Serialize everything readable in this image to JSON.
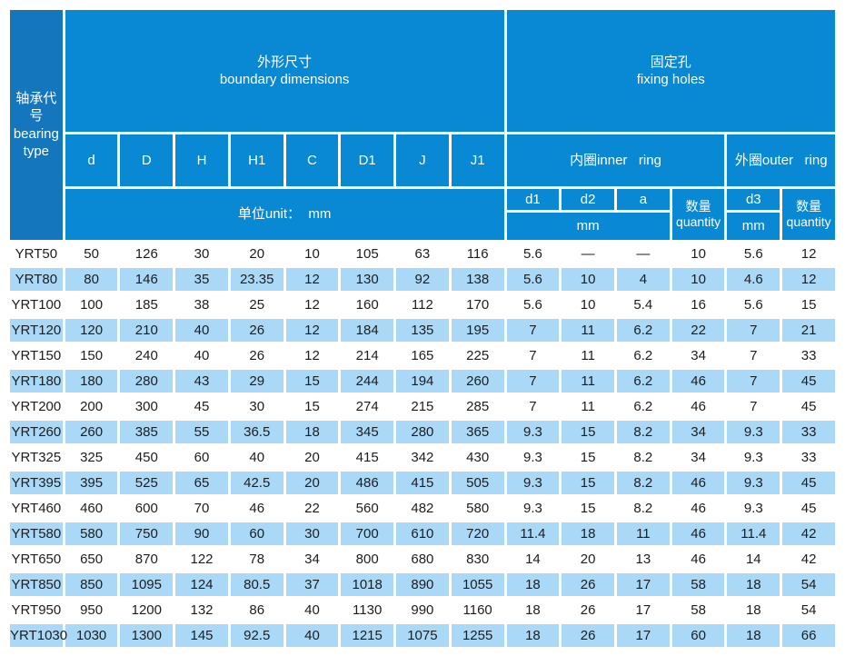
{
  "table": {
    "bearing_type_header": {
      "zh": "轴承代号",
      "en_line1": "bearing",
      "en_line2": "type"
    },
    "groups": {
      "boundary": {
        "zh": "外形尺寸",
        "en": "boundary dimensions"
      },
      "fixing": {
        "zh": "固定孔",
        "en": "fixing holes"
      }
    },
    "dim_columns": [
      "d",
      "D",
      "H",
      "H1",
      "C",
      "D1",
      "J",
      "J1"
    ],
    "unit_row_label": "单位unit：  mm",
    "inner_ring_label": "内圈inner   ring",
    "outer_ring_label": "外圈outer   ring",
    "hole_columns": {
      "d1": "d1",
      "d2": "d2",
      "a": "a",
      "d3": "d3"
    },
    "mm_label": "mm",
    "quantity": {
      "zh": "数量",
      "en": "quantity"
    },
    "rows": [
      {
        "type": "YRT50",
        "values": [
          "50",
          "126",
          "30",
          "20",
          "10",
          "105",
          "63",
          "116",
          "5.6",
          "—",
          "—",
          "10",
          "5.6",
          "12"
        ]
      },
      {
        "type": "YRT80",
        "values": [
          "80",
          "146",
          "35",
          "23.35",
          "12",
          "130",
          "92",
          "138",
          "5.6",
          "10",
          "4",
          "10",
          "4.6",
          "12"
        ]
      },
      {
        "type": "YRT100",
        "values": [
          "100",
          "185",
          "38",
          "25",
          "12",
          "160",
          "112",
          "170",
          "5.6",
          "10",
          "5.4",
          "16",
          "5.6",
          "15"
        ]
      },
      {
        "type": "YRT120",
        "values": [
          "120",
          "210",
          "40",
          "26",
          "12",
          "184",
          "135",
          "195",
          "7",
          "11",
          "6.2",
          "22",
          "7",
          "21"
        ]
      },
      {
        "type": "YRT150",
        "values": [
          "150",
          "240",
          "40",
          "26",
          "12",
          "214",
          "165",
          "225",
          "7",
          "11",
          "6.2",
          "34",
          "7",
          "33"
        ]
      },
      {
        "type": "YRT180",
        "values": [
          "180",
          "280",
          "43",
          "29",
          "15",
          "244",
          "194",
          "260",
          "7",
          "11",
          "6.2",
          "46",
          "7",
          "45"
        ]
      },
      {
        "type": "YRT200",
        "values": [
          "200",
          "300",
          "45",
          "30",
          "15",
          "274",
          "215",
          "285",
          "7",
          "11",
          "6.2",
          "46",
          "7",
          "45"
        ]
      },
      {
        "type": "YRT260",
        "values": [
          "260",
          "385",
          "55",
          "36.5",
          "18",
          "345",
          "280",
          "365",
          "9.3",
          "15",
          "8.2",
          "34",
          "9.3",
          "33"
        ]
      },
      {
        "type": "YRT325",
        "values": [
          "325",
          "450",
          "60",
          "40",
          "20",
          "415",
          "342",
          "430",
          "9.3",
          "15",
          "8.2",
          "34",
          "9.3",
          "33"
        ]
      },
      {
        "type": "YRT395",
        "values": [
          "395",
          "525",
          "65",
          "42.5",
          "20",
          "486",
          "415",
          "505",
          "9.3",
          "15",
          "8.2",
          "46",
          "9.3",
          "45"
        ]
      },
      {
        "type": "YRT460",
        "values": [
          "460",
          "600",
          "70",
          "46",
          "22",
          "560",
          "482",
          "580",
          "9.3",
          "15",
          "8.2",
          "46",
          "9.3",
          "45"
        ]
      },
      {
        "type": "YRT580",
        "values": [
          "580",
          "750",
          "90",
          "60",
          "30",
          "700",
          "610",
          "720",
          "11.4",
          "18",
          "11",
          "46",
          "11.4",
          "42"
        ]
      },
      {
        "type": "YRT650",
        "values": [
          "650",
          "870",
          "122",
          "78",
          "34",
          "800",
          "680",
          "830",
          "14",
          "20",
          "13",
          "46",
          "14",
          "42"
        ]
      },
      {
        "type": "YRT850",
        "values": [
          "850",
          "1095",
          "124",
          "80.5",
          "37",
          "1018",
          "890",
          "1055",
          "18",
          "26",
          "17",
          "58",
          "18",
          "54"
        ]
      },
      {
        "type": "YRT950",
        "values": [
          "950",
          "1200",
          "132",
          "86",
          "40",
          "1130",
          "990",
          "1160",
          "18",
          "26",
          "17",
          "58",
          "18",
          "54"
        ]
      },
      {
        "type": "YRT1030",
        "values": [
          "1030",
          "1300",
          "145",
          "92.5",
          "40",
          "1215",
          "1075",
          "1255",
          "18",
          "26",
          "17",
          "60",
          "18",
          "66"
        ]
      }
    ]
  },
  "colors": {
    "header_blue": "#0989d3",
    "header_dark_blue": "#1476bd",
    "row_alt_blue": "#a9d9f6",
    "row_white": "#ffffff",
    "header_text": "#ffffff",
    "data_text": "#1d1d1f"
  }
}
